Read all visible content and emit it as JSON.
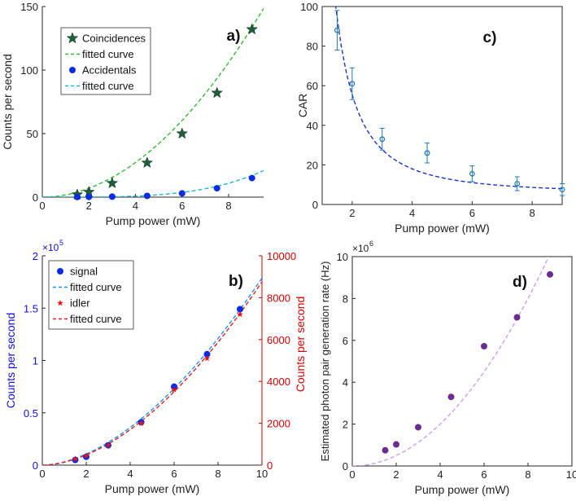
{
  "chart_data": [
    {
      "id": "a",
      "type": "scatter",
      "panel_label": "a)",
      "xlabel": "Pump power (mW)",
      "ylabel": "Counts per second",
      "xlim": [
        0,
        9.5
      ],
      "ylim": [
        0,
        150
      ],
      "xticks": [
        "0",
        "2",
        "4",
        "6",
        "8"
      ],
      "yticks": [
        "0",
        "50",
        "100",
        "150"
      ],
      "legend": [
        "Coincidences",
        "fitted curve",
        "Accidentals",
        "fitted curve"
      ],
      "legend_position": "top-left",
      "series": [
        {
          "name": "Coincidences",
          "marker": "star",
          "color": "#1e5e3c",
          "x": [
            1.5,
            2,
            3,
            4.5,
            6,
            7.5,
            9
          ],
          "y": [
            2,
            4,
            11,
            27,
            50,
            82,
            132
          ]
        },
        {
          "name": "fitted curve",
          "kind": "fit",
          "color": "#33bb33",
          "fit": {
            "form": "power",
            "a": 1.8,
            "b": 1.96
          }
        },
        {
          "name": "Accidentals",
          "marker": "circle",
          "color": "#0a2be6",
          "x": [
            1.5,
            2,
            3,
            4.5,
            6,
            7.5,
            9
          ],
          "y": [
            0.1,
            0.2,
            0.4,
            1,
            3,
            7,
            15
          ]
        },
        {
          "name": "fitted curve",
          "kind": "fit",
          "color": "#20b8c8",
          "fit": {
            "form": "power",
            "a": 0.0045,
            "b": 3.75
          }
        }
      ]
    },
    {
      "id": "b",
      "type": "scatter",
      "panel_label": "b)",
      "xlabel": "Pump power (mW)",
      "ylabel": "Counts per second",
      "ylabel_right": "Counts per second",
      "xlim": [
        0,
        10
      ],
      "ylim": [
        0,
        2
      ],
      "ylim_right": [
        0,
        10000
      ],
      "y_multiplier": "×10",
      "y_multiplier_exp": "5",
      "xticks": [
        "0",
        "2",
        "4",
        "6",
        "8",
        "10"
      ],
      "yticks": [
        "0",
        "0.5",
        "1",
        "1.5",
        "2"
      ],
      "yticks_right": [
        "0",
        "2000",
        "4000",
        "6000",
        "8000",
        "10000"
      ],
      "legend": [
        "signal",
        "fitted curve",
        "idler",
        "fitted curve"
      ],
      "legend_position": "top-left",
      "series": [
        {
          "name": "signal",
          "marker": "circle",
          "color": "#0a2be6",
          "axis": "left",
          "x": [
            1.5,
            2,
            3,
            4.5,
            6,
            7.5,
            9
          ],
          "y": [
            0.05,
            0.08,
            0.19,
            0.41,
            0.75,
            1.06,
            1.49
          ]
        },
        {
          "name": "fitted curve",
          "kind": "fit",
          "color": "#1e90ff",
          "axis": "left",
          "fit": {
            "form": "power",
            "a": 0.0318,
            "b": 1.75
          }
        },
        {
          "name": "idler",
          "marker": "star",
          "color": "#ee1111",
          "axis": "right",
          "x": [
            1.5,
            2,
            3,
            4.5,
            6,
            7.5,
            9
          ],
          "y": [
            300,
            450,
            950,
            2000,
            3600,
            5100,
            7200
          ]
        },
        {
          "name": "fitted curve",
          "kind": "fit",
          "color": "#dd2222",
          "axis": "right",
          "fit": {
            "form": "power",
            "a": 142,
            "b": 1.79
          }
        }
      ]
    },
    {
      "id": "c",
      "type": "scatter",
      "panel_label": "c)",
      "xlabel": "Pump power (mW)",
      "ylabel": "CAR",
      "xlim": [
        1,
        9
      ],
      "ylim": [
        0,
        100
      ],
      "xticks": [
        "2",
        "4",
        "6",
        "8"
      ],
      "yticks": [
        "0",
        "20",
        "40",
        "60",
        "80",
        "100"
      ],
      "series": [
        {
          "name": "",
          "marker": "open-circle",
          "color": "#1f77b4",
          "x": [
            1.5,
            2,
            3,
            4.5,
            6,
            7.5,
            9
          ],
          "y": [
            88,
            61,
            33,
            26,
            15.5,
            10.5,
            7.5
          ],
          "err": [
            10,
            8,
            5.5,
            5,
            4,
            3.5,
            3
          ]
        },
        {
          "name": "",
          "kind": "fit",
          "color": "#1a33cc",
          "fit": {
            "form": "power_offset",
            "a": 200,
            "b": 2.0,
            "c": 5.5
          }
        }
      ]
    },
    {
      "id": "d",
      "type": "scatter",
      "panel_label": "d)",
      "xlabel": "Pump power (mW)",
      "ylabel": "Estimated photon pair generation rate (Hz)",
      "xlim": [
        0,
        10
      ],
      "ylim": [
        0,
        10
      ],
      "y_multiplier": "×10",
      "y_multiplier_exp": "6",
      "xticks": [
        "0",
        "2",
        "4",
        "6",
        "8",
        "10"
      ],
      "yticks": [
        "0",
        "2",
        "4",
        "6",
        "8",
        "10"
      ],
      "series": [
        {
          "name": "",
          "marker": "circle",
          "color": "#6a2c91",
          "x": [
            1.5,
            2,
            3,
            4.5,
            6,
            7.5,
            9
          ],
          "y": [
            0.75,
            1.03,
            1.85,
            3.3,
            5.72,
            7.1,
            9.15
          ]
        },
        {
          "name": "",
          "kind": "fit",
          "color": "#c8a0ee",
          "fit": {
            "form": "power",
            "a": 0.125,
            "b": 2.0
          }
        }
      ]
    }
  ]
}
